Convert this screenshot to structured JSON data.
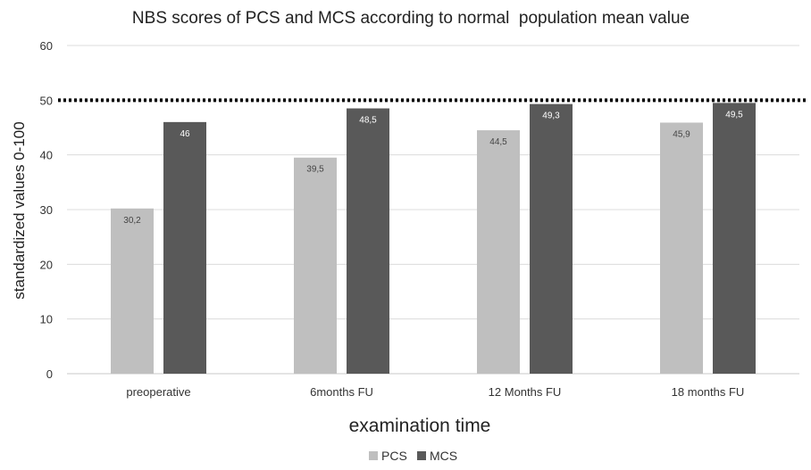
{
  "chart_data": {
    "type": "bar",
    "title": "NBS scores of PCS and MCS according to normal  population mean value",
    "xlabel": "examination time",
    "ylabel": "standardized values 0-100",
    "categories": [
      "preoperative",
      "6months FU",
      "12 Months FU",
      "18 months FU"
    ],
    "series": [
      {
        "name": "PCS",
        "values": [
          30.2,
          39.5,
          44.5,
          45.9
        ],
        "labels": [
          "30,2",
          "39,5",
          "44,5",
          "45,9"
        ],
        "color": "#bfbfbf"
      },
      {
        "name": "MCS",
        "values": [
          46,
          48.5,
          49.3,
          49.5
        ],
        "labels": [
          "46",
          "48,5",
          "49,3",
          "49,5"
        ],
        "color": "#595959"
      }
    ],
    "ylim": [
      0,
      60
    ],
    "yticks": [
      0,
      10,
      20,
      30,
      40,
      50,
      60
    ],
    "grid": true,
    "legend": "bottom",
    "reference_line": {
      "value": 50,
      "style": "dotted",
      "color": "#000000"
    }
  }
}
